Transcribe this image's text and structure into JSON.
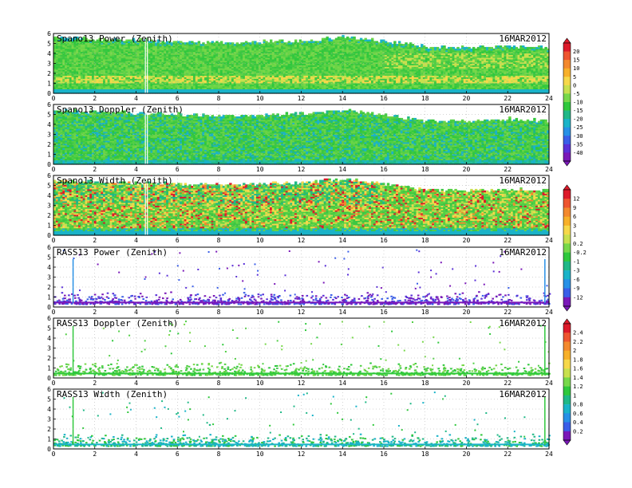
{
  "date_label": "16MAR2012",
  "chart_data": [
    {
      "type": "heatmap",
      "title": "Spano13 Power (Zenith)",
      "date": "16MAR2012",
      "xlim": [
        0,
        24
      ],
      "ylim": [
        0,
        6
      ],
      "x_ticks": [
        "0",
        "2",
        "4",
        "6",
        "8",
        "10",
        "12",
        "14",
        "16",
        "18",
        "20",
        "22",
        "24"
      ],
      "y_ticks": [
        "0",
        "1",
        "2",
        "3",
        "4",
        "5",
        "6"
      ],
      "colorbar_group": "power",
      "echo_top_profile": [
        [
          0,
          5.5
        ],
        [
          5,
          5.2
        ],
        [
          8,
          5.0
        ],
        [
          12,
          5.2
        ],
        [
          14,
          5.6
        ],
        [
          16,
          5.2
        ],
        [
          18,
          4.6
        ],
        [
          20,
          4.5
        ],
        [
          22,
          4.7
        ],
        [
          24,
          4.5
        ]
      ]
    },
    {
      "type": "heatmap",
      "title": "Spano13 Doppler (Zenith)",
      "date": "16MAR2012",
      "xlim": [
        0,
        24
      ],
      "ylim": [
        0,
        6
      ],
      "x_ticks": [
        "0",
        "2",
        "4",
        "6",
        "8",
        "10",
        "12",
        "14",
        "16",
        "18",
        "20",
        "22",
        "24"
      ],
      "y_ticks": [
        "0",
        "1",
        "2",
        "3",
        "4",
        "5",
        "6"
      ],
      "colorbar_group": "power",
      "echo_top_profile": [
        [
          0,
          5.3
        ],
        [
          5,
          5.0
        ],
        [
          8,
          4.8
        ],
        [
          12,
          5.0
        ],
        [
          14,
          5.4
        ],
        [
          16,
          4.9
        ],
        [
          18,
          4.3
        ],
        [
          20,
          4.2
        ],
        [
          22,
          4.5
        ],
        [
          24,
          4.3
        ]
      ]
    },
    {
      "type": "heatmap",
      "title": "Spano13 Width (Zenith)",
      "date": "16MAR2012",
      "xlim": [
        0,
        24
      ],
      "ylim": [
        0,
        6
      ],
      "x_ticks": [
        "0",
        "2",
        "4",
        "6",
        "8",
        "10",
        "12",
        "14",
        "16",
        "18",
        "20",
        "22",
        "24"
      ],
      "y_ticks": [
        "0",
        "1",
        "2",
        "3",
        "4",
        "5",
        "6"
      ],
      "colorbar_group": "width",
      "echo_top_profile": [
        [
          0,
          5.4
        ],
        [
          5,
          5.1
        ],
        [
          8,
          5.0
        ],
        [
          12,
          5.2
        ],
        [
          14,
          5.6
        ],
        [
          16,
          5.1
        ],
        [
          18,
          4.5
        ],
        [
          20,
          4.4
        ],
        [
          22,
          4.6
        ],
        [
          24,
          4.4
        ]
      ]
    },
    {
      "type": "scatter",
      "title": "RASS13 Power (Zenith)",
      "date": "16MAR2012",
      "xlim": [
        0,
        24
      ],
      "ylim": [
        0,
        6
      ],
      "x_ticks": [
        "0",
        "2",
        "4",
        "6",
        "8",
        "10",
        "12",
        "14",
        "16",
        "18",
        "20",
        "22",
        "24"
      ],
      "y_ticks": [
        "0",
        "1",
        "2",
        "3",
        "4",
        "5",
        "6"
      ],
      "colorbar_group": "rass_power"
    },
    {
      "type": "scatter",
      "title": "RASS13 Doppler (Zenith)",
      "date": "16MAR2012",
      "xlim": [
        0,
        24
      ],
      "ylim": [
        0,
        6
      ],
      "x_ticks": [
        "0",
        "2",
        "4",
        "6",
        "8",
        "10",
        "12",
        "14",
        "16",
        "18",
        "20",
        "22",
        "24"
      ],
      "y_ticks": [
        "0",
        "1",
        "2",
        "3",
        "4",
        "5",
        "6"
      ],
      "colorbar_group": "rass_doppler"
    },
    {
      "type": "scatter",
      "title": "RASS13 Width (Zenith)",
      "date": "16MAR2012",
      "xlim": [
        0,
        24
      ],
      "ylim": [
        0,
        6
      ],
      "x_ticks": [
        "0",
        "2",
        "4",
        "6",
        "8",
        "10",
        "12",
        "14",
        "16",
        "18",
        "20",
        "22",
        "24"
      ],
      "y_ticks": [
        "0",
        "1",
        "2",
        "3",
        "4",
        "5",
        "6"
      ],
      "colorbar_group": "rass_doppler"
    }
  ],
  "colorbars": [
    {
      "id": "power",
      "labels": [
        "20",
        "15",
        "10",
        "5",
        "0",
        "-5",
        "-10",
        "-15",
        "-20",
        "-25",
        "-30",
        "-35",
        "-40"
      ],
      "colors": [
        "#dd1a2a",
        "#ee5530",
        "#f3892e",
        "#f7b02a",
        "#f6d84a",
        "#c8e04e",
        "#77d84a",
        "#2fc83c",
        "#20b887",
        "#1ab3c8",
        "#2790e6",
        "#3a5ee8",
        "#5a30d8",
        "#7a18b8"
      ]
    },
    {
      "id": "width",
      "labels": [
        "12",
        "9",
        "6",
        "3",
        "1",
        "0.2",
        "-0.2",
        "-1",
        "-3",
        "-6",
        "-9",
        "-12"
      ],
      "colors": [
        "#dd1a2a",
        "#ee5530",
        "#f3892e",
        "#f7b02a",
        "#f6d84a",
        "#c8e04e",
        "#77d84a",
        "#2fc83c",
        "#20b887",
        "#1ab3c8",
        "#2790e6",
        "#3a5ee8",
        "#7a18b8"
      ]
    },
    {
      "id": "rass",
      "labels": [
        "2.4",
        "2.2",
        "2",
        "1.8",
        "1.6",
        "1.4",
        "1.2",
        "1",
        "0.8",
        "0.6",
        "0.4",
        "0.2"
      ],
      "colors": [
        "#dd1a2a",
        "#ee5530",
        "#f3892e",
        "#f7b02a",
        "#f6d84a",
        "#c8e04e",
        "#77d84a",
        "#2fc83c",
        "#20b887",
        "#1ab3c8",
        "#2790e6",
        "#3a5ee8",
        "#7a18b8"
      ]
    }
  ]
}
